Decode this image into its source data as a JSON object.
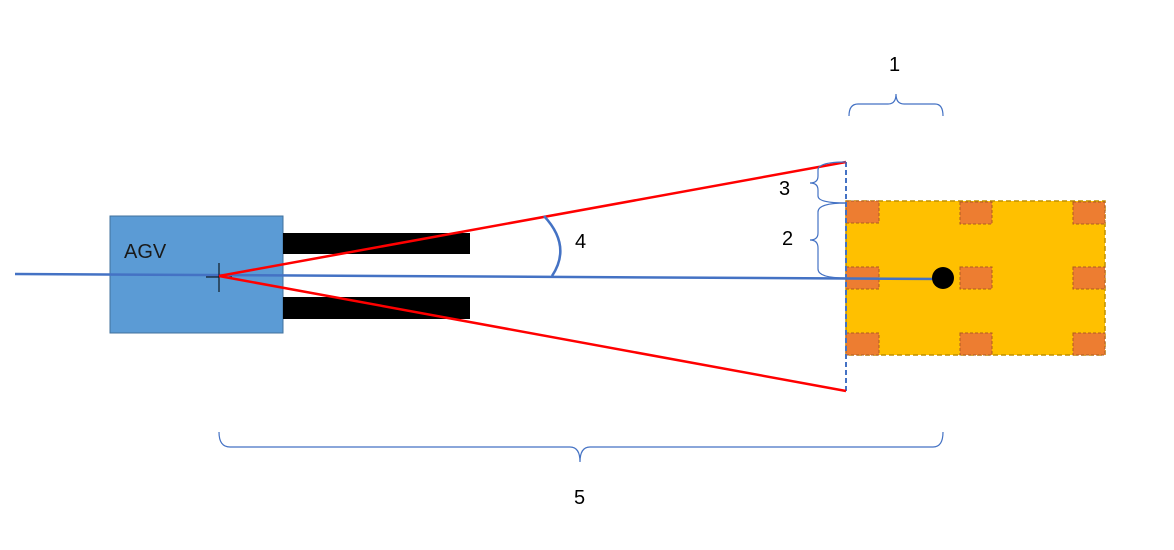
{
  "diagram": {
    "agv_label": "AGV",
    "labels": {
      "one": "1",
      "two": "2",
      "three": "3",
      "four": "4",
      "five": "5"
    },
    "colors": {
      "agv_body": "#5b9bd5",
      "agv_border": "#41719c",
      "forks": "#000000",
      "rays": "#ff0000",
      "axis": "#4472c4",
      "pallet": "#ffc000",
      "pallet_border": "#bf9000",
      "pallet_blocks": "#ed7d31",
      "pallet_block_border": "#ae5a21",
      "brace": "#4472c4",
      "target_dot": "#000000"
    }
  }
}
